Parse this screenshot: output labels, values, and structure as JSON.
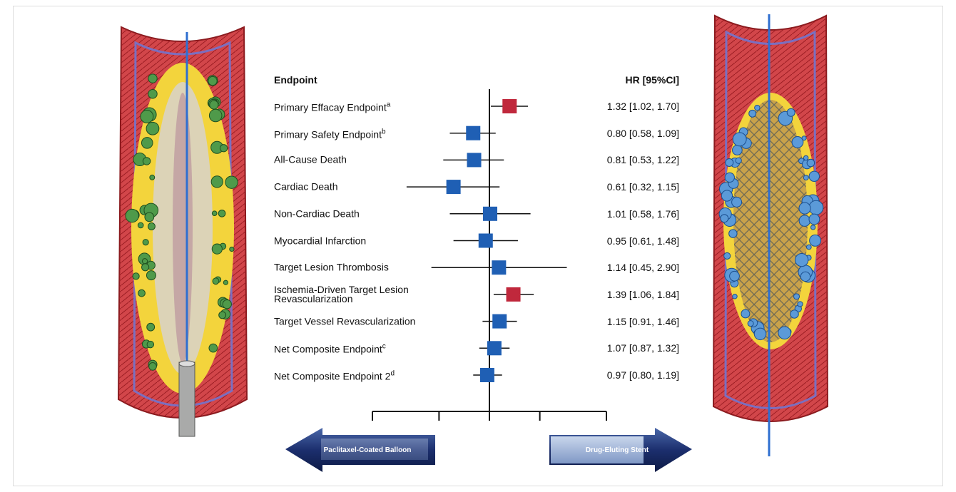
{
  "chart_data": {
    "type": "forest",
    "header_label": "Endpoint",
    "header_value": "HR [95%CI]",
    "categories": [
      "Primary Effacay Endpoint",
      "Primary Safety Endpoint",
      "All-Cause Death",
      "Cardiac Death",
      "Non-Cardiac Death",
      "Myocardial Infarction",
      "Target Lesion Thrombosis",
      "Ischemia-Driven Target Lesion Revascularization",
      "Target Vessel Revascularization",
      "Net Composite Endpoint",
      "Net Composite Endpoint 2"
    ],
    "superscripts": [
      "a",
      "b",
      null,
      null,
      null,
      null,
      null,
      null,
      null,
      "c",
      "d"
    ],
    "values": [
      1.32,
      0.8,
      0.81,
      0.61,
      1.01,
      0.95,
      1.14,
      1.39,
      1.15,
      1.07,
      0.97
    ],
    "lower": [
      1.02,
      0.58,
      0.53,
      0.32,
      0.58,
      0.61,
      0.45,
      1.06,
      0.91,
      0.87,
      0.8
    ],
    "upper": [
      1.7,
      1.09,
      1.22,
      1.15,
      1.76,
      1.48,
      2.9,
      1.84,
      1.46,
      1.32,
      1.19
    ],
    "value_labels": [
      "1.32 [1.02, 1.70]",
      "0.80 [0.58, 1.09]",
      "0.81 [0.53, 1.22]",
      "0.61 [0.32, 1.15]",
      "1.01 [0.58, 1.76]",
      "0.95 [0.61, 1.48]",
      "1.14 [0.45, 2.90]",
      "1.39 [1.06, 1.84]",
      "1.15 [0.91, 1.46]",
      "1.07 [0.87, 1.32]",
      "0.97 [0.80, 1.19]"
    ],
    "colors": [
      "#c0283c",
      "#1f5fb4",
      "#1f5fb4",
      "#1f5fb4",
      "#1f5fb4",
      "#1f5fb4",
      "#1f5fb4",
      "#c0283c",
      "#1f5fb4",
      "#1f5fb4",
      "#1f5fb4"
    ],
    "xscale": "log",
    "xlim": [
      0.2,
      5
    ],
    "xticks": [
      0.2,
      0.5,
      1,
      2,
      5
    ],
    "reference": 1,
    "left_arrow_label": "Paclitaxel-Coated Balloon",
    "right_arrow_label": "Drug-Eluting Stent"
  }
}
